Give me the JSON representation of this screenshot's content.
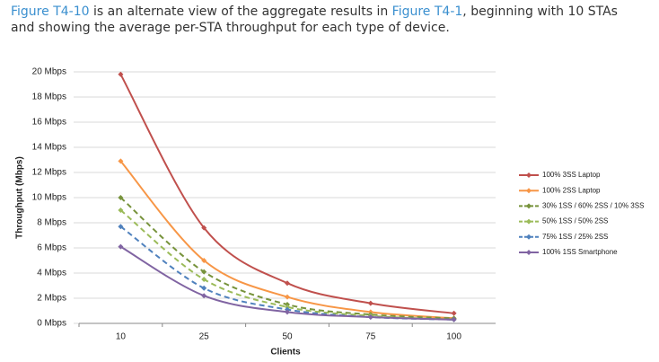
{
  "intro": {
    "parts": [
      "Figure T4-10",
      " is an alternate view of the aggregate results in ",
      "Figure T4-1",
      ", beginning with 10 STAs and showing the average per-STA throughput for each type of device."
    ]
  },
  "chart_data": {
    "type": "line",
    "y_label": "Throughput (Mbps)",
    "x_label": "Clients",
    "categories": [
      "10",
      "25",
      "50",
      "75",
      "100"
    ],
    "ylim": [
      0,
      20
    ],
    "yticks": [
      {
        "value": 0,
        "label": "0 Mbps"
      },
      {
        "value": 2,
        "label": "2 Mbps"
      },
      {
        "value": 4,
        "label": "4 Mbps"
      },
      {
        "value": 6,
        "label": "6 Mbps"
      },
      {
        "value": 8,
        "label": "8 Mbps"
      },
      {
        "value": 10,
        "label": "10 Mbps"
      },
      {
        "value": 12,
        "label": "12 Mbps"
      },
      {
        "value": 14,
        "label": "14 Mbps"
      },
      {
        "value": 16,
        "label": "16 Mbps"
      },
      {
        "value": 18,
        "label": "18 Mbps"
      },
      {
        "value": 20,
        "label": "20 Mbps"
      }
    ],
    "grid": true,
    "smooth": true,
    "legend": "right",
    "series": [
      {
        "name": "100% 3SS Laptop",
        "color": "#c0504d",
        "dashed": false,
        "values": [
          19.8,
          7.6,
          3.2,
          1.6,
          0.8
        ]
      },
      {
        "name": "100% 2SS Laptop",
        "color": "#f79646",
        "dashed": false,
        "values": [
          12.9,
          5.0,
          2.1,
          0.9,
          0.4
        ]
      },
      {
        "name": "30% 1SS / 60% 2SS / 10% 3SS",
        "color": "#77933c",
        "dashed": true,
        "values": [
          10.0,
          4.1,
          1.5,
          0.7,
          0.4
        ]
      },
      {
        "name": "50% 1SS / 50% 2SS",
        "color": "#9bbb59",
        "dashed": true,
        "values": [
          9.0,
          3.5,
          1.3,
          0.6,
          0.3
        ]
      },
      {
        "name": "75% 1SS / 25% 2SS",
        "color": "#4f81bd",
        "dashed": true,
        "values": [
          7.7,
          2.8,
          1.1,
          0.5,
          0.3
        ]
      },
      {
        "name": "100% 1SS Smartphone",
        "color": "#8064a2",
        "dashed": false,
        "values": [
          6.1,
          2.2,
          0.9,
          0.5,
          0.3
        ]
      }
    ]
  }
}
